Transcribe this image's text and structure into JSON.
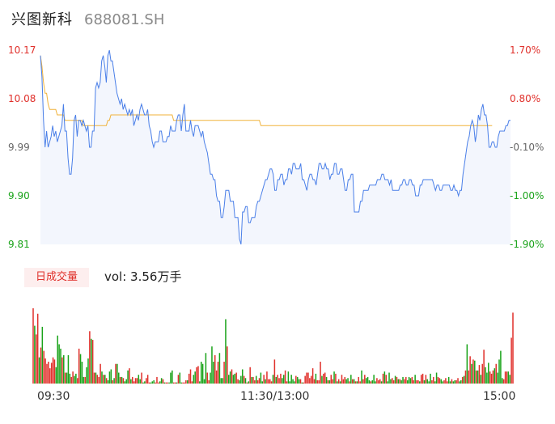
{
  "header": {
    "name": "兴图新科",
    "code": "688081.SH"
  },
  "price_axis": {
    "left_labels": [
      "10.17",
      "10.08",
      "9.99",
      "9.90",
      "9.81"
    ],
    "right_labels": [
      "1.70%",
      "0.80%",
      "-0.10%",
      "-1.00%",
      "-1.90%"
    ]
  },
  "volume_panel": {
    "badge": "日成交量",
    "vol_text": "vol: 3.56万手"
  },
  "time_axis": {
    "labels": [
      "09:30",
      "11:30/13:00",
      "15:00"
    ]
  },
  "colors": {
    "price_line": "#4a7fe8",
    "price_fill": "#f3f6fd",
    "avg_line": "#f0b23a",
    "up": "#e0302b",
    "down": "#1aa31a",
    "axis_red": "#e0302b",
    "axis_green": "#1aa31a",
    "axis_gray": "#666666"
  },
  "chart_data": {
    "type": "line",
    "title": "",
    "xlabel": "",
    "ylabel": "",
    "ylim": [
      9.81,
      10.17
    ],
    "x_ticks": [
      "09:30",
      "11:30/13:00",
      "15:00"
    ],
    "series": [
      {
        "values": [
          10.16,
          10.12,
          10.04,
          9.99,
          10.02,
          9.99,
          10.0,
          10.01,
          10.03,
          10.01,
          10.02,
          10.0,
          10.01,
          10.02,
          10.03,
          10.07,
          10.02,
          10.02,
          9.97,
          9.94,
          9.94,
          9.97,
          10.04,
          10.05,
          10.01,
          10.04,
          10.04,
          10.03,
          10.04,
          10.03,
          10.02,
          10.03,
          9.99,
          9.99,
          10.02,
          10.02,
          10.1,
          10.11,
          10.1,
          10.11,
          10.15,
          10.16,
          10.14,
          10.11,
          10.16,
          10.17,
          10.15,
          10.15,
          10.13,
          10.11,
          10.09,
          10.08,
          10.07,
          10.08,
          10.06,
          10.07,
          10.06,
          10.05,
          10.06,
          10.05,
          10.06,
          10.03,
          10.04,
          10.05,
          10.04,
          10.06,
          10.07,
          10.06,
          10.05,
          10.05,
          10.06,
          10.03,
          10.02,
          10.0,
          9.99,
          10.0,
          10.0,
          10.0,
          10.02,
          10.02,
          10.0,
          10.0,
          10.0,
          10.01,
          10.01,
          10.03,
          10.02,
          10.02,
          10.02,
          10.04,
          10.05,
          10.05,
          10.02,
          10.05,
          10.07,
          10.02,
          10.02,
          10.02,
          10.04,
          10.02,
          10.01,
          10.03,
          10.03,
          10.03,
          10.02,
          10.01,
          10.02,
          10.0,
          9.99,
          9.98,
          9.96,
          9.94,
          9.94,
          9.93,
          9.93,
          9.9,
          9.89,
          9.89,
          9.86,
          9.86,
          9.88,
          9.91,
          9.91,
          9.91,
          9.89,
          9.89,
          9.89,
          9.86,
          9.86,
          9.86,
          9.82,
          9.81,
          9.87,
          9.87,
          9.88,
          9.88,
          9.85,
          9.85,
          9.86,
          9.86,
          9.86,
          9.88,
          9.89,
          9.89,
          9.9,
          9.91,
          9.92,
          9.93,
          9.93,
          9.94,
          9.95,
          9.95,
          9.94,
          9.91,
          9.91,
          9.93,
          9.93,
          9.94,
          9.94,
          9.92,
          9.93,
          9.93,
          9.95,
          9.95,
          9.94,
          9.96,
          9.96,
          9.95,
          9.95,
          9.95,
          9.96,
          9.93,
          9.93,
          9.92,
          9.91,
          9.93,
          9.94,
          9.94,
          9.93,
          9.93,
          9.92,
          9.94,
          9.96,
          9.96,
          9.95,
          9.95,
          9.96,
          9.95,
          9.95,
          9.93,
          9.94,
          9.94,
          9.96,
          9.96,
          9.94,
          9.94,
          9.95,
          9.95,
          9.93,
          9.91,
          9.91,
          9.93,
          9.93,
          9.94,
          9.94,
          9.87,
          9.87,
          9.87,
          9.87,
          9.89,
          9.89,
          9.91,
          9.91,
          9.91,
          9.91,
          9.92,
          9.92,
          9.92,
          9.92,
          9.92,
          9.93,
          9.93,
          9.93,
          9.94,
          9.94,
          9.93,
          9.93,
          9.93,
          9.92,
          9.93,
          9.91,
          9.91,
          9.91,
          9.91,
          9.91,
          9.92,
          9.92,
          9.93,
          9.93,
          9.92,
          9.92,
          9.93,
          9.93,
          9.92,
          9.92,
          9.9,
          9.9,
          9.9,
          9.92,
          9.92,
          9.93,
          9.93,
          9.93,
          9.93,
          9.93,
          9.93,
          9.93,
          9.92,
          9.91,
          9.92,
          9.92,
          9.91,
          9.91,
          9.92,
          9.92,
          9.92,
          9.92,
          9.92,
          9.91,
          9.91,
          9.92,
          9.91,
          9.91,
          9.9,
          9.91,
          9.91,
          9.94,
          9.96,
          9.98,
          10.0,
          10.01,
          10.03,
          10.04,
          10.03,
          10.0,
          10.02,
          10.05,
          10.04,
          10.06,
          10.07,
          10.05,
          10.05,
          10.03,
          9.99,
          9.99,
          10.0,
          10.0,
          9.99,
          9.99,
          10.01,
          10.02,
          10.02,
          10.02,
          10.02,
          10.03,
          10.03,
          10.04,
          10.04
        ]
      },
      {
        "values": [
          10.16,
          10.14,
          10.11,
          10.09,
          10.09,
          10.07,
          10.06,
          10.06,
          10.06,
          10.06,
          10.06,
          10.05,
          10.05,
          10.05,
          10.05,
          10.05,
          10.04,
          10.04,
          10.04,
          10.04,
          10.04,
          10.04,
          10.04,
          10.04,
          10.04,
          10.04,
          10.04,
          10.04,
          10.03,
          10.03,
          10.03,
          10.03,
          10.03,
          10.03,
          10.03,
          10.03,
          10.03,
          10.03,
          10.03,
          10.03,
          10.03,
          10.03,
          10.03,
          10.03,
          10.04,
          10.04,
          10.05,
          10.05,
          10.05,
          10.05,
          10.05,
          10.05,
          10.05,
          10.05,
          10.05,
          10.05,
          10.05,
          10.05,
          10.05,
          10.05,
          10.05,
          10.05,
          10.05,
          10.05,
          10.05,
          10.05,
          10.05,
          10.05,
          10.05,
          10.05,
          10.05,
          10.05,
          10.05,
          10.05,
          10.05,
          10.05,
          10.05,
          10.05,
          10.05,
          10.05,
          10.05,
          10.05,
          10.05,
          10.05,
          10.05,
          10.05,
          10.05,
          10.04,
          10.04,
          10.04,
          10.04,
          10.04,
          10.04,
          10.04,
          10.04,
          10.04,
          10.04,
          10.04,
          10.04,
          10.04,
          10.04,
          10.04,
          10.04,
          10.04,
          10.04,
          10.04,
          10.04,
          10.04,
          10.04,
          10.04,
          10.04,
          10.04,
          10.04,
          10.04,
          10.04,
          10.04,
          10.04,
          10.04,
          10.04,
          10.04,
          10.04,
          10.04,
          10.04,
          10.04,
          10.04,
          10.04,
          10.04,
          10.04,
          10.04,
          10.04,
          10.04,
          10.04,
          10.04,
          10.04,
          10.04,
          10.04,
          10.04,
          10.04,
          10.04,
          10.04,
          10.04,
          10.04,
          10.04,
          10.04,
          10.03,
          10.03,
          10.03,
          10.03,
          10.03,
          10.03,
          10.03,
          10.03,
          10.03,
          10.03,
          10.03,
          10.03,
          10.03,
          10.03,
          10.03,
          10.03,
          10.03,
          10.03,
          10.03,
          10.03,
          10.03,
          10.03,
          10.03,
          10.03,
          10.03,
          10.03,
          10.03,
          10.03,
          10.03,
          10.03,
          10.03,
          10.03,
          10.03,
          10.03,
          10.03,
          10.03,
          10.03,
          10.03,
          10.03,
          10.03,
          10.03,
          10.03,
          10.03,
          10.03,
          10.03,
          10.03,
          10.03,
          10.03,
          10.03,
          10.03,
          10.03,
          10.03,
          10.03,
          10.03,
          10.03,
          10.03,
          10.03,
          10.03,
          10.03,
          10.03,
          10.03,
          10.03,
          10.03,
          10.03,
          10.03,
          10.03,
          10.03,
          10.03,
          10.03,
          10.03,
          10.03,
          10.03,
          10.03,
          10.03,
          10.03,
          10.03,
          10.03,
          10.03,
          10.03,
          10.03,
          10.03,
          10.03,
          10.03,
          10.03,
          10.03,
          10.03,
          10.03,
          10.03,
          10.03,
          10.03,
          10.03,
          10.03,
          10.03,
          10.03,
          10.03,
          10.03,
          10.03,
          10.03,
          10.03,
          10.03,
          10.03,
          10.03,
          10.03,
          10.03,
          10.03,
          10.03,
          10.03,
          10.03,
          10.03,
          10.03,
          10.03,
          10.03,
          10.03,
          10.03,
          10.03,
          10.03,
          10.03,
          10.03,
          10.03,
          10.03,
          10.03,
          10.03,
          10.03,
          10.03,
          10.03,
          10.03,
          10.03,
          10.03,
          10.03,
          10.03,
          10.03,
          10.03,
          10.03,
          10.03,
          10.03,
          10.03,
          10.03,
          10.03,
          10.03,
          10.03,
          10.03,
          10.03,
          10.03,
          10.03,
          10.03,
          10.03,
          10.03,
          10.03,
          10.03,
          10.03,
          10.03,
          10.03
        ]
      }
    ],
    "volume": {
      "values": [
        69,
        53,
        45,
        64,
        24,
        33,
        52,
        30,
        23,
        18,
        20,
        14,
        19,
        24,
        22,
        15,
        44,
        36,
        32,
        24,
        26,
        10,
        10,
        26,
        9,
        6,
        11,
        7,
        9,
        5,
        32,
        27,
        20,
        6,
        6,
        15,
        23,
        48,
        41,
        40,
        10,
        10,
        8,
        6,
        18,
        11,
        8,
        8,
        5,
        3,
        11,
        13,
        3,
        5,
        18,
        18,
        10,
        6,
        6,
        5,
        2,
        4,
        12,
        14,
        4,
        6,
        2,
        5,
        5,
        8,
        4,
        10,
        1,
        2,
        5,
        8,
        1,
        1,
        2,
        3,
        1,
        6,
        1,
        2,
        5,
        4,
        1,
        1,
        1,
        1,
        10,
        12,
        1,
        1,
        1,
        8,
        10,
        1,
        1,
        1,
        3,
        3,
        9,
        13,
        2,
        8,
        11,
        15,
        16,
        2,
        20,
        18,
        4,
        28,
        10,
        3,
        10,
        34,
        20,
        26,
        12,
        20,
        28,
        5,
        5,
        20,
        59,
        34,
        8,
        11,
        13,
        8,
        9,
        10,
        4,
        3,
        7,
        13,
        7,
        5,
        1,
        2,
        15,
        6,
        6,
        3,
        7,
        3,
        5,
        10,
        2,
        8,
        4,
        11,
        4,
        4,
        2,
        8,
        22,
        6,
        8,
        5,
        9,
        5,
        8,
        12,
        2,
        11,
        2,
        8,
        4,
        2,
        7,
        6,
        4,
        4,
        1,
        1,
        7,
        10,
        10,
        5,
        7,
        14,
        4,
        9,
        3,
        3,
        20,
        7,
        9,
        10,
        6,
        3,
        3,
        8,
        4,
        11,
        9,
        2,
        4,
        2,
        8,
        4,
        6,
        4,
        5,
        2,
        8,
        4,
        4,
        2,
        2,
        6,
        2,
        12,
        4,
        8,
        5,
        6,
        3,
        2,
        3,
        8,
        2,
        5,
        3,
        4,
        2,
        9,
        11,
        8,
        2,
        10,
        4,
        5,
        3,
        7,
        6,
        4,
        4,
        3,
        6,
        4,
        6,
        3,
        6,
        5,
        6,
        3,
        8,
        3,
        3,
        2,
        8,
        9,
        3,
        8,
        4,
        2,
        9,
        3,
        6,
        2,
        10,
        6,
        5,
        4,
        2,
        3,
        5,
        2,
        6,
        2,
        4,
        2,
        3,
        3,
        5,
        2,
        3,
        6,
        7,
        12,
        36,
        12,
        25,
        18,
        22,
        21,
        12,
        12,
        17,
        8,
        18,
        31,
        15,
        10,
        19,
        11,
        9,
        12,
        14,
        18,
        10,
        22,
        30,
        5,
        4,
        11,
        11,
        11,
        8,
        42,
        65
      ],
      "up": [
        true,
        false,
        true,
        true,
        false,
        true,
        false,
        true,
        true,
        true,
        true,
        true,
        true,
        true,
        true,
        false,
        false,
        false,
        false,
        true,
        false,
        true,
        false,
        false,
        false,
        true,
        true,
        false,
        false,
        true,
        true,
        false,
        false,
        false,
        true,
        false,
        false,
        true,
        false,
        true,
        true,
        false,
        true,
        true,
        true,
        false,
        true,
        false,
        true,
        false,
        false,
        false,
        true,
        false,
        true,
        false,
        false,
        true,
        false,
        true,
        false,
        false,
        false,
        true,
        false,
        true,
        true,
        true,
        true,
        false,
        false,
        true,
        false,
        false,
        true,
        true,
        true,
        false,
        false,
        false,
        true,
        true,
        true,
        false,
        false,
        true,
        false,
        true,
        true,
        false,
        false,
        false,
        true,
        true,
        false,
        true,
        false,
        false,
        true,
        true,
        true,
        false,
        true,
        true,
        true,
        false,
        false,
        true,
        true,
        false,
        false,
        false,
        false,
        false,
        true,
        true,
        false,
        false,
        false,
        true,
        true,
        true,
        false,
        false,
        false,
        true,
        false,
        true,
        false,
        false,
        true,
        false,
        false,
        true,
        true,
        false,
        false,
        false,
        true,
        false,
        true,
        false,
        true,
        false,
        true,
        true,
        false,
        true,
        true,
        false,
        false,
        true,
        false,
        true,
        true,
        true,
        true,
        false,
        true,
        false,
        true,
        true,
        true,
        false,
        false,
        true,
        true,
        false,
        false,
        false,
        false,
        false,
        true,
        false,
        false,
        true,
        false,
        true,
        true,
        true,
        true,
        true,
        true,
        true,
        true,
        false,
        true,
        true,
        true,
        false,
        true,
        true,
        false,
        true,
        false,
        true,
        true,
        false,
        true,
        false,
        true,
        false,
        true,
        true,
        true,
        false,
        false,
        true,
        false,
        true,
        false,
        true,
        false,
        true,
        true,
        false,
        true,
        true,
        false,
        false,
        false,
        true,
        false,
        false,
        false,
        true,
        true,
        true,
        false,
        true,
        false,
        true,
        false,
        false,
        false,
        true,
        true,
        false,
        true,
        false,
        true,
        false,
        false,
        true,
        true,
        false,
        false,
        false,
        true,
        true,
        false,
        true,
        true,
        false,
        true,
        true,
        false,
        true,
        false,
        false,
        false,
        true,
        true,
        false,
        false,
        true,
        true,
        false,
        false,
        true,
        true,
        true,
        false,
        false,
        true,
        false,
        false,
        true,
        true,
        false,
        false,
        true,
        false,
        true,
        false,
        true,
        true,
        false,
        true,
        false,
        true,
        false,
        true,
        false,
        true,
        true,
        false,
        false,
        false,
        true,
        true,
        true,
        false,
        true,
        false,
        false,
        false,
        false,
        true,
        true,
        true,
        false,
        false,
        true,
        true
      ]
    }
  }
}
